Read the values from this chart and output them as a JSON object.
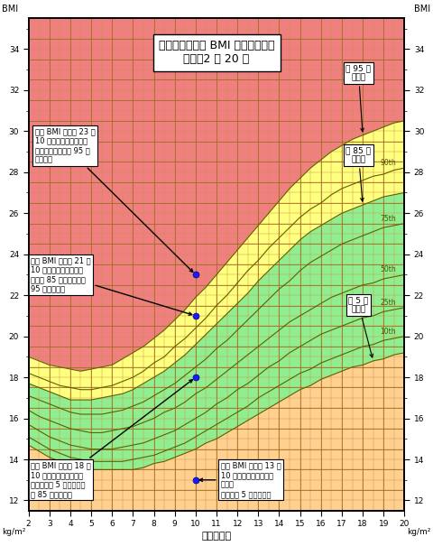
{
  "title_line1": "以年龄为标准的 BMI 指数百分点：",
  "title_line2": "男孩：2 至 20 岁",
  "xlabel": "岁数（年）",
  "ylabel_left": "BMI",
  "ylabel_right": "kg/m²",
  "xmin": 2,
  "xmax": 20,
  "ymin": 11.5,
  "ymax": 35.5,
  "background_color": "#ffffff",
  "color_obese": "#f08080",
  "color_overweight": "#ffff80",
  "color_healthy": "#90ee90",
  "color_underweight": "#ffd090",
  "grid_color_major": "#a06820",
  "grid_color_minor": "#c89040",
  "percentile_line_color": "#606000",
  "ann0_text": "一名 BMI 指数为 23 的\n10 岁男童在肥胖的类别\n内（大于或等于第 95 个\n百分点）",
  "ann1_text": "一名 BMI 指数为 21 的\n10 岁男童在超重的类别\n内（第 85 个百分点至第\n95 个百分点）",
  "ann2_text": "一名 BMI 指数为 18 的\n10 岁男童在健康体重的\n类别内（第 5 个百分点至\n第 85 个百分点）",
  "ann3_text": "一名 BMI 指数为 13 的\n10 岁男童在体重不足的\n类别内\n（小于第 5 个百分点）",
  "label_95": "第 95 个\n百分点",
  "label_85": "第 85 个\n百分点",
  "label_5": "第 5 个\n百分点",
  "ages": [
    2,
    2.5,
    3,
    3.5,
    4,
    4.5,
    5,
    5.5,
    6,
    6.5,
    7,
    7.5,
    8,
    8.5,
    9,
    9.5,
    10,
    10.5,
    11,
    11.5,
    12,
    12.5,
    13,
    13.5,
    14,
    14.5,
    15,
    15.5,
    16,
    16.5,
    17,
    17.5,
    18,
    18.5,
    19,
    19.5,
    20
  ],
  "p5": [
    14.7,
    14.4,
    14.1,
    13.9,
    13.7,
    13.6,
    13.5,
    13.5,
    13.5,
    13.5,
    13.5,
    13.6,
    13.8,
    13.9,
    14.1,
    14.3,
    14.5,
    14.8,
    15.0,
    15.3,
    15.6,
    15.9,
    16.2,
    16.5,
    16.8,
    17.1,
    17.4,
    17.6,
    17.9,
    18.1,
    18.3,
    18.5,
    18.6,
    18.8,
    18.9,
    19.1,
    19.2
  ],
  "p10": [
    15.1,
    14.8,
    14.5,
    14.3,
    14.1,
    14.0,
    13.9,
    13.9,
    13.9,
    13.9,
    14.0,
    14.1,
    14.2,
    14.4,
    14.6,
    14.8,
    15.1,
    15.4,
    15.7,
    16.0,
    16.3,
    16.6,
    17.0,
    17.3,
    17.6,
    17.9,
    18.2,
    18.4,
    18.7,
    18.9,
    19.1,
    19.3,
    19.5,
    19.6,
    19.8,
    19.9,
    20.0
  ],
  "p25": [
    15.7,
    15.4,
    15.1,
    14.9,
    14.7,
    14.6,
    14.5,
    14.5,
    14.5,
    14.6,
    14.7,
    14.8,
    15.0,
    15.2,
    15.4,
    15.7,
    16.0,
    16.3,
    16.7,
    17.0,
    17.4,
    17.7,
    18.1,
    18.5,
    18.8,
    19.2,
    19.5,
    19.8,
    20.1,
    20.3,
    20.5,
    20.7,
    20.9,
    21.0,
    21.2,
    21.3,
    21.4
  ],
  "p50": [
    16.4,
    16.1,
    15.9,
    15.7,
    15.5,
    15.4,
    15.3,
    15.3,
    15.4,
    15.5,
    15.6,
    15.8,
    16.0,
    16.3,
    16.5,
    16.8,
    17.2,
    17.5,
    17.9,
    18.3,
    18.7,
    19.1,
    19.5,
    19.9,
    20.3,
    20.7,
    21.0,
    21.3,
    21.6,
    21.9,
    22.1,
    22.3,
    22.5,
    22.6,
    22.8,
    22.9,
    23.0
  ],
  "p75": [
    17.1,
    16.9,
    16.7,
    16.5,
    16.3,
    16.2,
    16.2,
    16.2,
    16.3,
    16.4,
    16.6,
    16.8,
    17.1,
    17.4,
    17.7,
    18.1,
    18.5,
    18.9,
    19.4,
    19.8,
    20.3,
    20.8,
    21.3,
    21.8,
    22.3,
    22.7,
    23.2,
    23.6,
    23.9,
    24.2,
    24.5,
    24.7,
    24.9,
    25.1,
    25.3,
    25.4,
    25.5
  ],
  "p85": [
    17.7,
    17.5,
    17.3,
    17.1,
    16.9,
    16.9,
    16.9,
    17.0,
    17.1,
    17.2,
    17.4,
    17.7,
    18.0,
    18.3,
    18.7,
    19.1,
    19.6,
    20.1,
    20.6,
    21.1,
    21.6,
    22.1,
    22.7,
    23.2,
    23.7,
    24.2,
    24.7,
    25.1,
    25.4,
    25.7,
    26.0,
    26.2,
    26.4,
    26.6,
    26.8,
    26.9,
    27.0
  ],
  "p90": [
    18.2,
    18.0,
    17.8,
    17.6,
    17.5,
    17.4,
    17.4,
    17.5,
    17.6,
    17.8,
    18.0,
    18.3,
    18.7,
    19.0,
    19.5,
    19.9,
    20.4,
    20.9,
    21.5,
    22.0,
    22.6,
    23.2,
    23.7,
    24.3,
    24.8,
    25.3,
    25.8,
    26.2,
    26.5,
    26.9,
    27.2,
    27.4,
    27.6,
    27.8,
    27.9,
    28.1,
    28.2
  ],
  "p95": [
    19.0,
    18.8,
    18.6,
    18.5,
    18.4,
    18.3,
    18.4,
    18.5,
    18.6,
    18.9,
    19.2,
    19.5,
    19.9,
    20.3,
    20.8,
    21.3,
    21.9,
    22.4,
    23.0,
    23.6,
    24.2,
    24.8,
    25.4,
    26.0,
    26.6,
    27.2,
    27.7,
    28.2,
    28.6,
    29.0,
    29.3,
    29.6,
    29.8,
    30.0,
    30.2,
    30.4,
    30.5
  ]
}
